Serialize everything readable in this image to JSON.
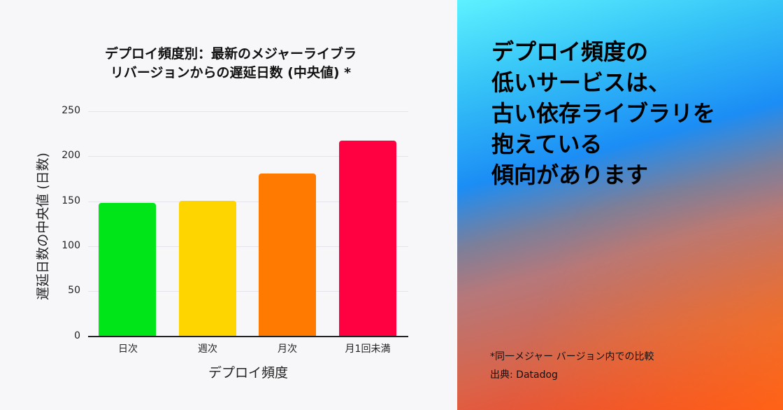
{
  "chart": {
    "title_line1": "デプロイ頻度別：最新のメジャーライブラ",
    "title_line2": "リバージョンからの遅延日数 (中央値) *",
    "ylabel": "遅延日数の中央値 (日数)",
    "xlabel": "デプロイ頻度",
    "yticks": [
      "250",
      "200",
      "150",
      "100",
      "50",
      "0"
    ]
  },
  "chart_data": {
    "type": "bar",
    "title": "デプロイ頻度別：最新のメジャーライブラリバージョンからの遅延日数 (中央値) *",
    "xlabel": "デプロイ頻度",
    "ylabel": "遅延日数の中央値 (日数)",
    "categories": [
      "日次",
      "週次",
      "月次",
      "月1回未満"
    ],
    "values": [
      148,
      150,
      181,
      217
    ],
    "colors": [
      "#00e517",
      "#ffd500",
      "#ff7a00",
      "#ff0040"
    ],
    "ylim": [
      0,
      250
    ],
    "yticks": [
      0,
      50,
      100,
      150,
      200,
      250
    ],
    "grid": true,
    "legend": "none"
  },
  "panel": {
    "headline": [
      "デプロイ頻度の",
      "低いサービスは、",
      "古い依存ライブラリを",
      "抱えている",
      "傾向があります"
    ],
    "footnote": "*同一メジャー バージョン内での比較",
    "source": "出典: Datadog"
  }
}
